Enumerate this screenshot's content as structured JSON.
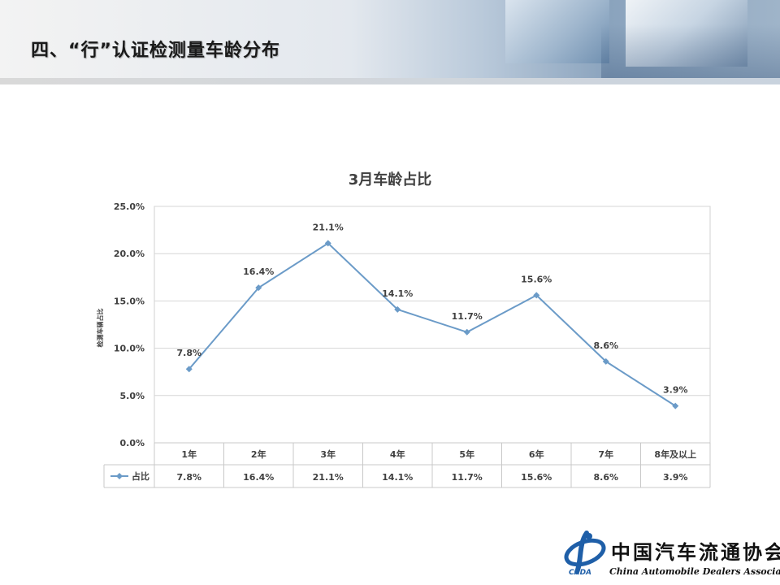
{
  "slide_title": "四、“行”认证检测量车龄分布",
  "chart_data": {
    "type": "line",
    "title": "3月车龄占比",
    "ylabel": "检测车辆占比",
    "categories": [
      "1年",
      "2年",
      "3年",
      "4年",
      "5年",
      "6年",
      "7年",
      "8年及以上"
    ],
    "series": [
      {
        "name": "占比",
        "values": [
          7.8,
          16.4,
          21.1,
          14.1,
          11.7,
          15.6,
          8.6,
          3.9
        ]
      }
    ],
    "data_labels": [
      "7.8%",
      "16.4%",
      "21.1%",
      "14.1%",
      "11.7%",
      "15.6%",
      "8.6%",
      "3.9%"
    ],
    "y_ticks": [
      "0.0%",
      "5.0%",
      "10.0%",
      "15.0%",
      "20.0%",
      "25.0%"
    ],
    "ylim": [
      0,
      25
    ],
    "grid": true,
    "legend": "data-table",
    "line_color": "#6b9bc8"
  },
  "logo": {
    "name_cn": "中国汽车流通协会",
    "name_en": "China Automobile Dealers Association",
    "abbr": "CADA"
  }
}
